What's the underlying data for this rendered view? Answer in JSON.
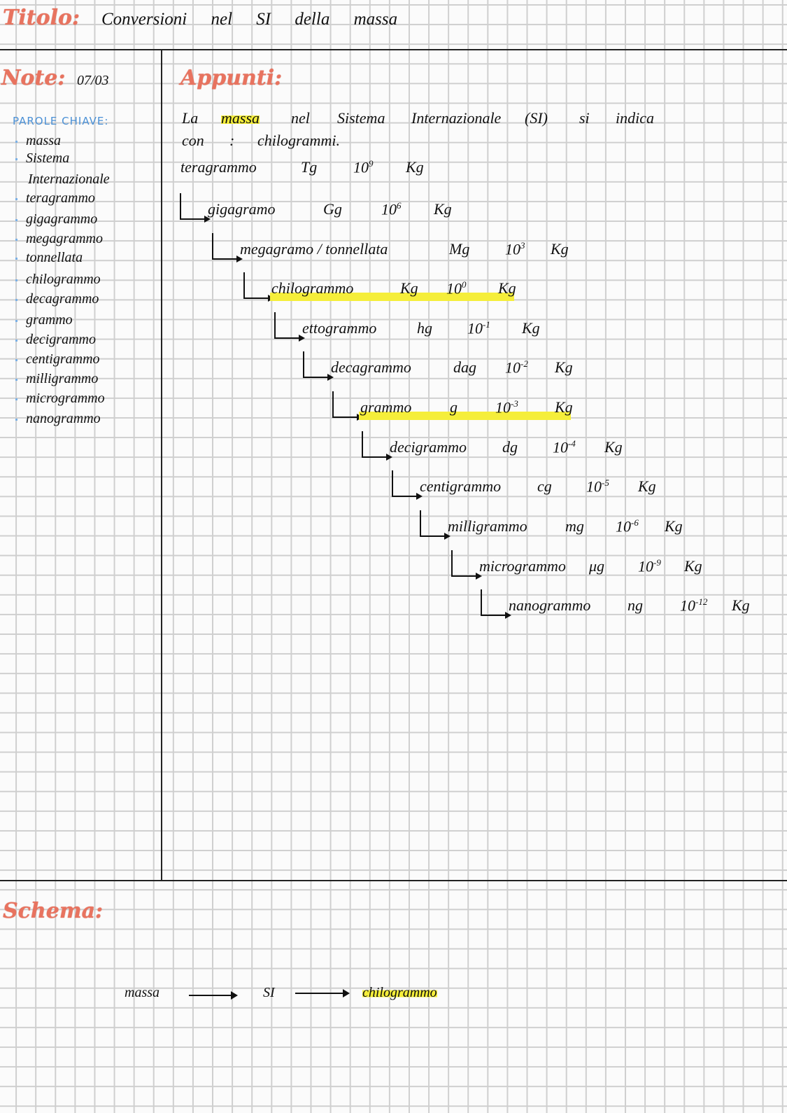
{
  "header": {
    "title_label": "Titolo:",
    "title": "Conversioni nel SI della massa"
  },
  "notes": {
    "label": "Note:",
    "date": "07/03"
  },
  "keywords": {
    "title": "PAROLE CHIAVE:",
    "items": [
      "massa",
      "Sistema",
      "Internazionale",
      "teragrammo",
      "gigagrammo",
      "megagrammo",
      "tonnellata",
      "chilogrammo",
      "decagrammo",
      "grammo",
      "decigrammo",
      "centigrammo",
      "milligrammo",
      "microgrammo",
      "nanogrammo"
    ]
  },
  "appunti": {
    "label": "Appunti:",
    "intro_words": [
      "La",
      "massa",
      "nel",
      "Sistema",
      "Internazionale",
      "(SI)",
      "si",
      "indica"
    ],
    "intro_line2": [
      "con",
      ":",
      "chilogrammi."
    ],
    "highlight_color": "#f5ee3a",
    "units": [
      {
        "name": "teragrammo",
        "symbol": "Tg",
        "base": "10",
        "exp": "9",
        "unit": "Kg",
        "highlight": false
      },
      {
        "name": "gigagramo",
        "symbol": "Gg",
        "base": "10",
        "exp": "6",
        "unit": "Kg",
        "highlight": false
      },
      {
        "name": "megagramo / tonnellata",
        "symbol": "Mg",
        "base": "10",
        "exp": "3",
        "unit": "Kg",
        "highlight": false
      },
      {
        "name": "chilogrammo",
        "symbol": "Kg",
        "base": "10",
        "exp": "0",
        "unit": "Kg",
        "highlight": true
      },
      {
        "name": "ettogrammo",
        "symbol": "hg",
        "base": "10",
        "exp": "-1",
        "unit": "Kg",
        "highlight": false
      },
      {
        "name": "decagrammo",
        "symbol": "dag",
        "base": "10",
        "exp": "-2",
        "unit": "Kg",
        "highlight": false
      },
      {
        "name": "grammo",
        "symbol": "g",
        "base": "10",
        "exp": "-3",
        "unit": "Kg",
        "highlight": true
      },
      {
        "name": "decigrammo",
        "symbol": "dg",
        "base": "10",
        "exp": "-4",
        "unit": "Kg",
        "highlight": false
      },
      {
        "name": "centigrammo",
        "symbol": "cg",
        "base": "10",
        "exp": "-5",
        "unit": "Kg",
        "highlight": false
      },
      {
        "name": "milligrammo",
        "symbol": "mg",
        "base": "10",
        "exp": "-6",
        "unit": "Kg",
        "highlight": false
      },
      {
        "name": "microgrammo",
        "symbol": "μg",
        "base": "10",
        "exp": "-9",
        "unit": "Kg",
        "highlight": false
      },
      {
        "name": "nanogrammo",
        "symbol": "ng",
        "base": "10",
        "exp": "-12",
        "unit": "Kg",
        "highlight": false
      }
    ]
  },
  "schema": {
    "label": "Schema:",
    "flow": [
      "massa",
      "SI",
      "chilogrammo"
    ]
  },
  "colors": {
    "heading": "#e8735f",
    "keyword_title": "#4a90d6",
    "highlight": "#f5ee3a"
  }
}
